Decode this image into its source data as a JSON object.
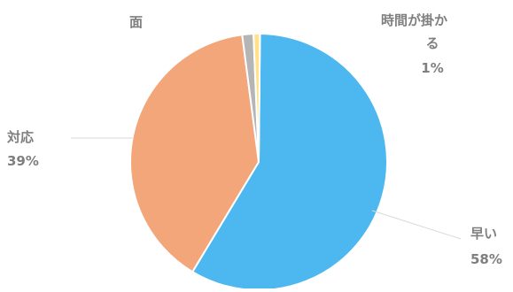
{
  "chart_data": {
    "type": "pie",
    "title": "",
    "slices": [
      {
        "label": "早い",
        "value": 58,
        "value_label": "58%",
        "color": "#4db8f0"
      },
      {
        "label": "対応",
        "value": 39,
        "value_label": "39%",
        "color": "#f3a679"
      },
      {
        "label": "",
        "value": 1.4,
        "value_label": "",
        "color": "#b5b5b5"
      },
      {
        "label": "時間が掛かる",
        "value": 0.8,
        "value_label": "1%",
        "color": "#ffe28a"
      }
    ],
    "extra_labels": [
      {
        "text": "面"
      }
    ],
    "label_color": "#7f7f7f",
    "background": "#ffffff"
  }
}
